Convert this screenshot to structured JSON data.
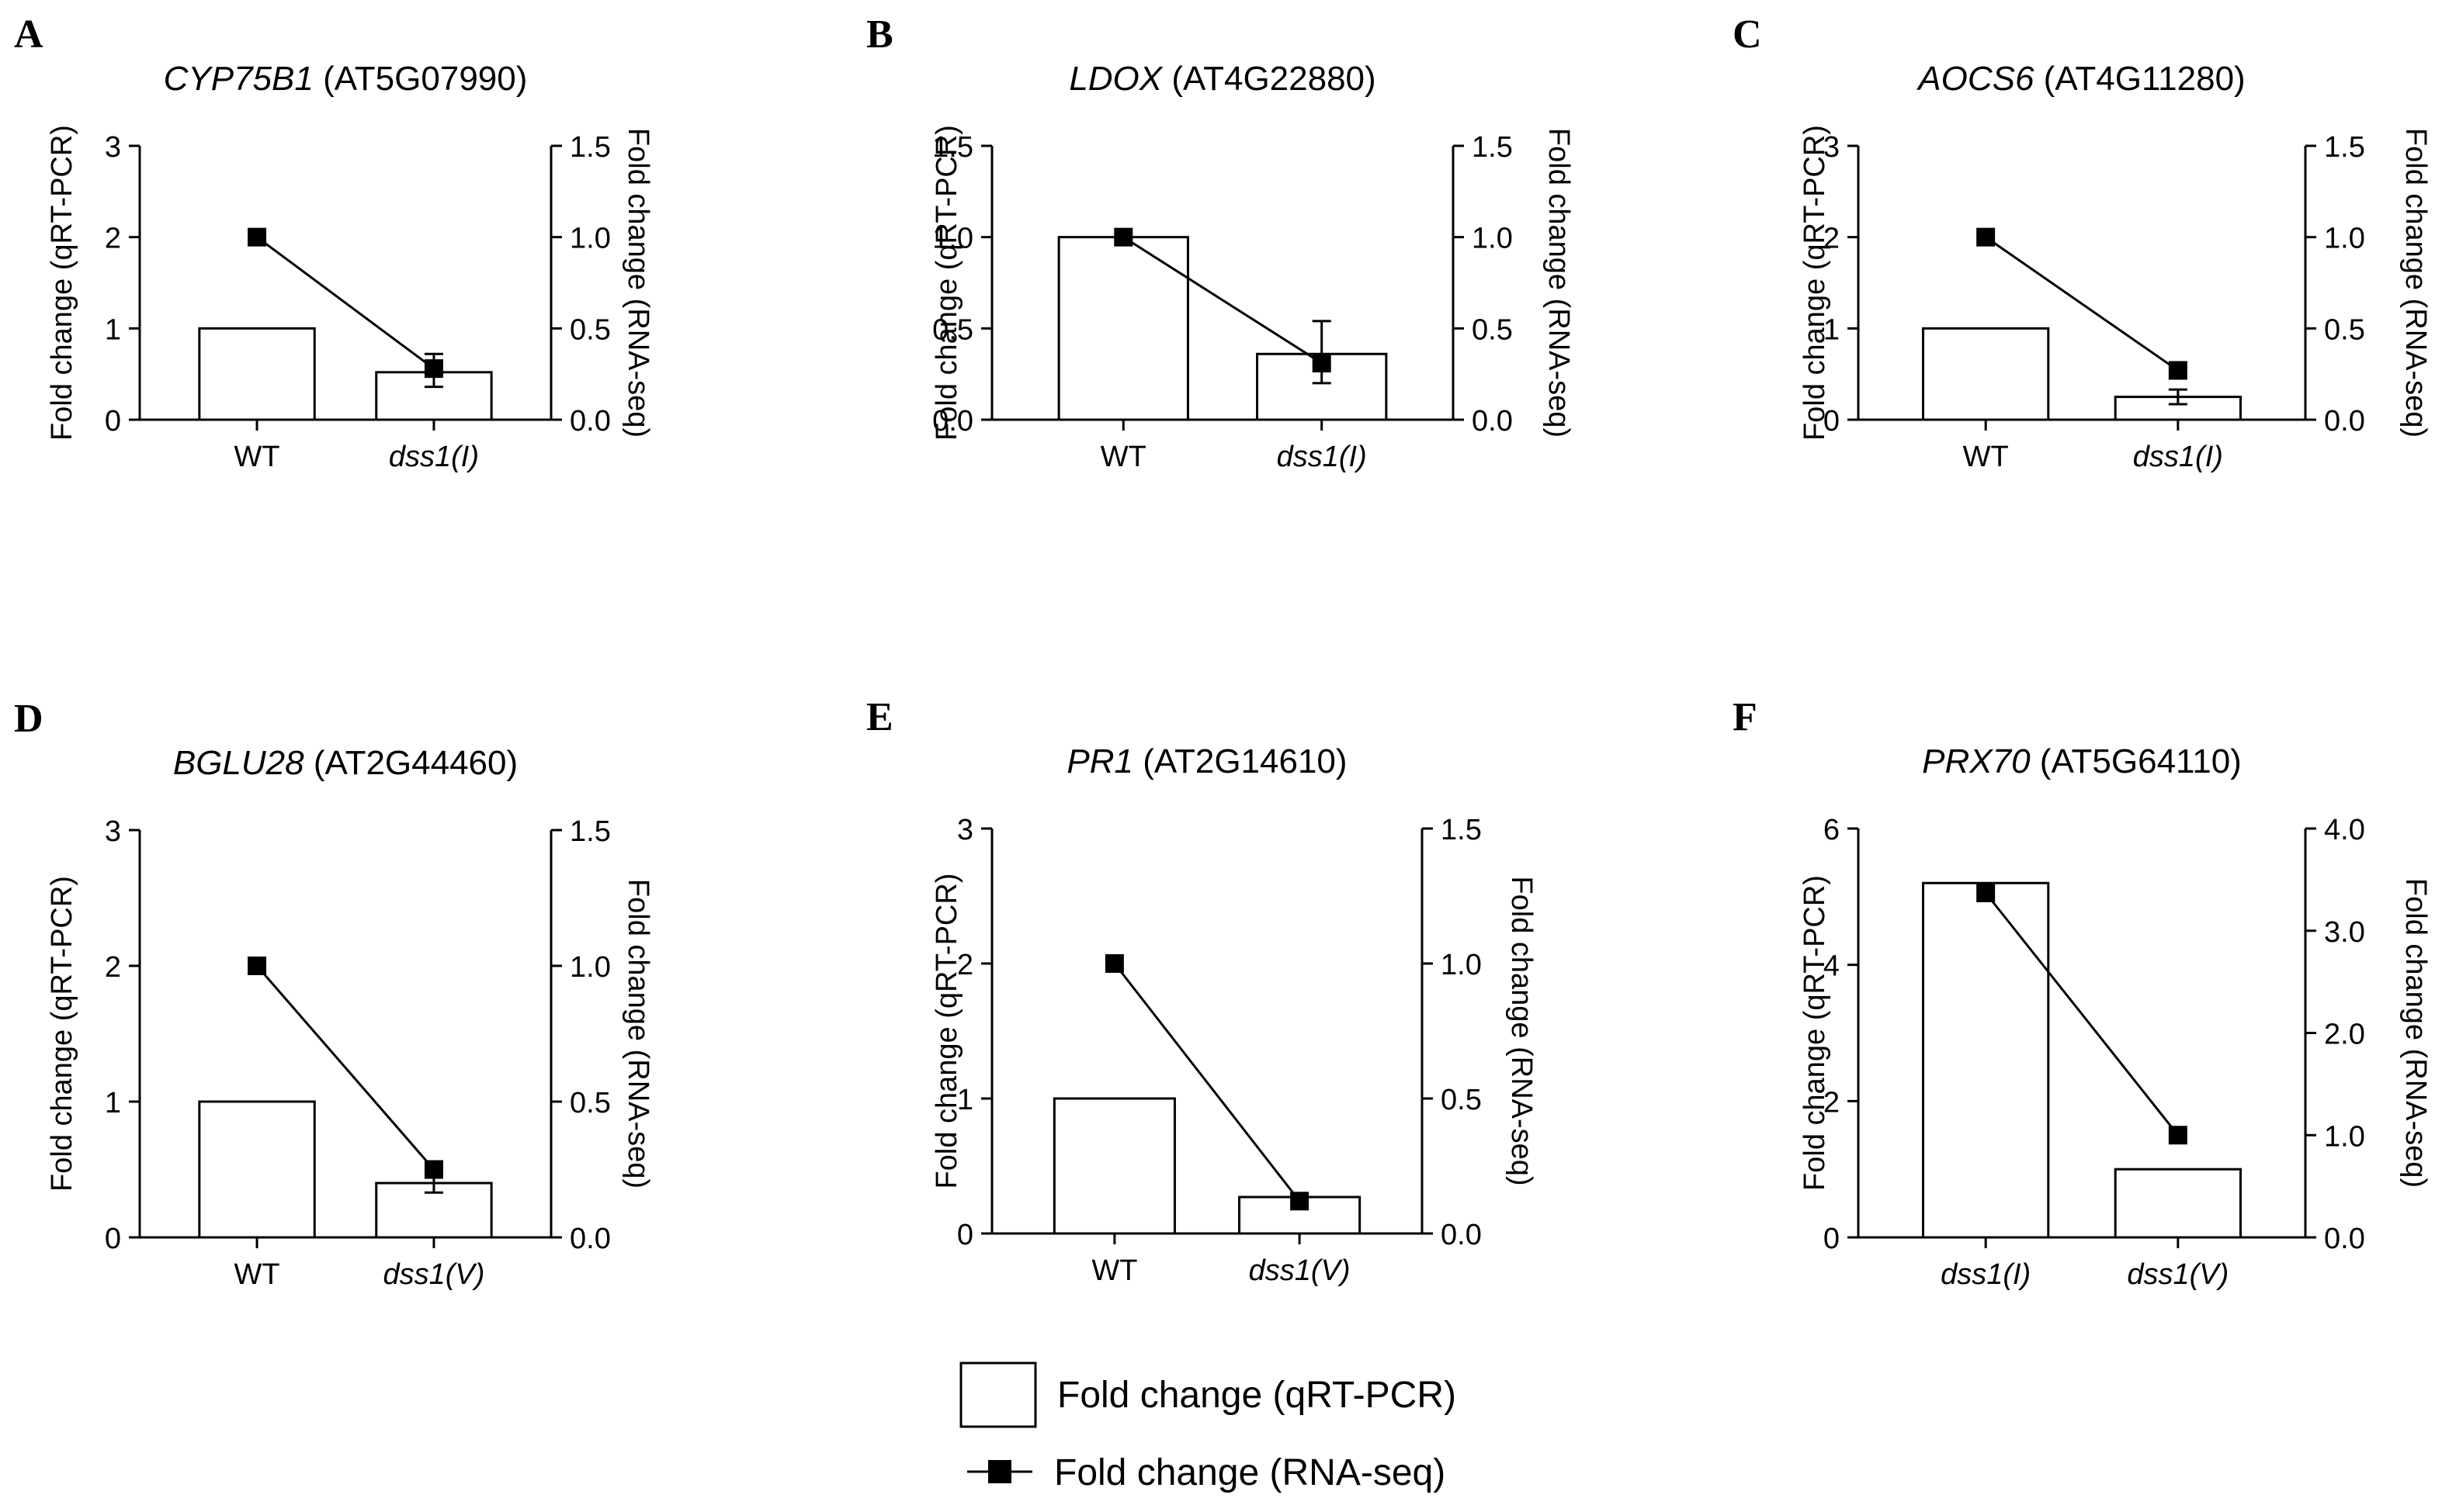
{
  "chart_data": [
    {
      "type": "bar+line",
      "panel_label": "A",
      "title_gene": "CYP75B1",
      "title_id": "(AT5G07990)",
      "ylabel": "Fold change (qRT-PCR)",
      "y2label": "Fold change (RNA-seq)",
      "categories": [
        "WT",
        "dss1(I)"
      ],
      "ylim": [
        0,
        3
      ],
      "yticks": [
        "0",
        "1",
        "2",
        "3"
      ],
      "y2lim": [
        0,
        1.5
      ],
      "y2ticks": [
        "0.0",
        "0.5",
        "1.0",
        "1.5"
      ],
      "bar_values": [
        1.0,
        0.52
      ],
      "line_values": [
        1.0,
        0.28
      ],
      "line_errors": [
        null,
        [
          0.18,
          0.36
        ]
      ]
    },
    {
      "type": "bar+line",
      "panel_label": "B",
      "title_gene": "LDOX",
      "title_id": "(AT4G22880)",
      "ylabel": "Fold change (qRT-PCR)",
      "y2label": "Fold change (RNA-seq)",
      "categories": [
        "WT",
        "dss1(I)"
      ],
      "ylim": [
        0,
        1.5
      ],
      "yticks": [
        "0.0",
        "0.5",
        "1.0",
        "1.5"
      ],
      "y2lim": [
        0,
        1.5
      ],
      "y2ticks": [
        "0.0",
        "0.5",
        "1.0",
        "1.5"
      ],
      "bar_values": [
        1.0,
        0.36
      ],
      "line_values": [
        1.0,
        0.31
      ],
      "line_errors": [
        null,
        [
          0.2,
          0.54
        ]
      ]
    },
    {
      "type": "bar+line",
      "panel_label": "C",
      "title_gene": "AOCS6",
      "title_id": "(AT4G11280)",
      "ylabel": "Fold change (qRT-PCR)",
      "y2label": "Fold change (RNA-seq)",
      "categories": [
        "WT",
        "dss1(I)"
      ],
      "ylim": [
        0,
        3
      ],
      "yticks": [
        "0",
        "1",
        "2",
        "3"
      ],
      "y2lim": [
        0,
        1.5
      ],
      "y2ticks": [
        "0.0",
        "0.5",
        "1.0",
        "1.5"
      ],
      "bar_values": [
        1.0,
        0.25
      ],
      "line_values": [
        1.0,
        0.27
      ],
      "bar_errors": [
        null,
        [
          0.17,
          0.33
        ]
      ]
    },
    {
      "type": "bar+line",
      "panel_label": "D",
      "title_gene": "BGLU28",
      "title_id": "(AT2G44460)",
      "ylabel": "Fold change (qRT-PCR)",
      "y2label": "Fold change (RNA-seq)",
      "categories": [
        "WT",
        "dss1(V)"
      ],
      "ylim": [
        0,
        3
      ],
      "yticks": [
        "0",
        "1",
        "2",
        "3"
      ],
      "y2lim": [
        0,
        1.5
      ],
      "y2ticks": [
        "0.0",
        "0.5",
        "1.0",
        "1.5"
      ],
      "bar_values": [
        1.0,
        0.4
      ],
      "line_values": [
        1.0,
        0.25
      ],
      "bar_errors": [
        null,
        [
          0.33,
          0.47
        ]
      ]
    },
    {
      "type": "bar+line",
      "panel_label": "E",
      "title_gene": "PR1",
      "title_id": "(AT2G14610)",
      "ylabel": "Fold change (qRT-PCR)",
      "y2label": "Fold change (RNA-seq)",
      "categories": [
        "WT",
        "dss1(V)"
      ],
      "ylim": [
        0,
        3
      ],
      "yticks": [
        "0",
        "1",
        "2",
        "3"
      ],
      "y2lim": [
        0,
        1.5
      ],
      "y2ticks": [
        "0.0",
        "0.5",
        "1.0",
        "1.5"
      ],
      "bar_values": [
        1.0,
        0.27
      ],
      "line_values": [
        1.0,
        0.12
      ]
    },
    {
      "type": "bar+line",
      "panel_label": "F",
      "title_gene": "PRX70",
      "title_id": "(AT5G64110)",
      "ylabel": "Fold change (qRT-PCR)",
      "y2label": "Fold change (RNA-seq)",
      "categories": [
        "dss1(I)",
        "dss1(V)"
      ],
      "ylim": [
        0,
        6
      ],
      "yticks": [
        "0",
        "2",
        "4",
        "6"
      ],
      "y2lim": [
        0,
        4
      ],
      "y2ticks": [
        "0.0",
        "1.0",
        "2.0",
        "3.0",
        "4.0"
      ],
      "bar_values": [
        5.2,
        1.0
      ],
      "line_values": [
        3.37,
        1.0
      ]
    }
  ],
  "legend": {
    "bar_label": "Fold change (qRT-PCR)",
    "line_label": "Fold change (RNA-seq)"
  },
  "colors": {
    "bar_fill": "#ffffff",
    "stroke": "#000000",
    "marker": "#000000"
  }
}
